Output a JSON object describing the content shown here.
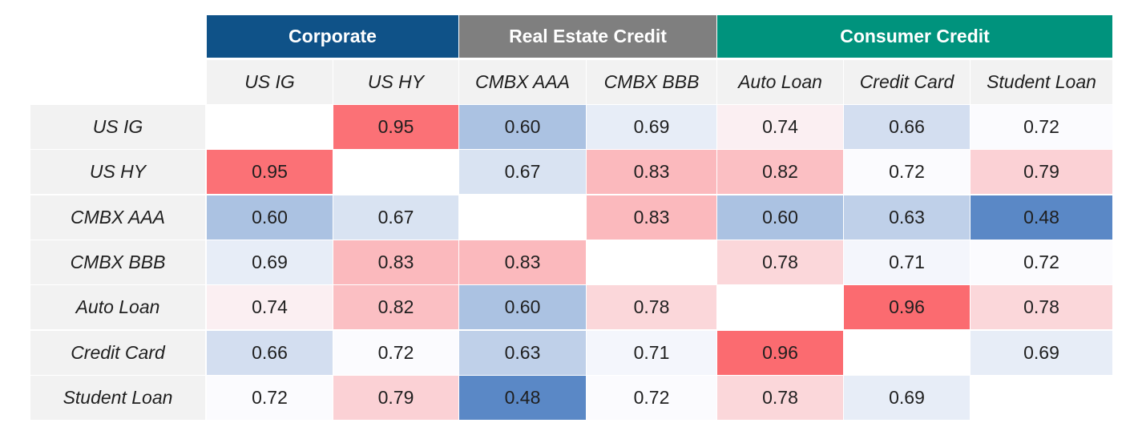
{
  "chart_data": {
    "type": "heatmap",
    "column_groups": [
      {
        "label": "Corporate",
        "span": 2,
        "color": "#0f5288"
      },
      {
        "label": "Real Estate Credit",
        "span": 2,
        "color": "#7f7f7f"
      },
      {
        "label": "Consumer Credit",
        "span": 3,
        "color": "#00937d"
      }
    ],
    "columns": [
      "US IG",
      "US HY",
      "CMBX AAA",
      "CMBX BBB",
      "Auto Loan",
      "Credit Card",
      "Student Loan"
    ],
    "rows": [
      "US IG",
      "US HY",
      "CMBX AAA",
      "CMBX BBB",
      "Auto Loan",
      "Credit Card",
      "Student Loan"
    ],
    "values": [
      [
        null,
        0.95,
        0.6,
        0.69,
        0.74,
        0.66,
        0.72
      ],
      [
        0.95,
        null,
        0.67,
        0.83,
        0.82,
        0.72,
        0.79
      ],
      [
        0.6,
        0.67,
        null,
        0.83,
        0.6,
        0.63,
        0.48
      ],
      [
        0.69,
        0.83,
        0.83,
        null,
        0.78,
        0.71,
        0.72
      ],
      [
        0.74,
        0.82,
        0.6,
        0.78,
        null,
        0.96,
        0.78
      ],
      [
        0.66,
        0.72,
        0.63,
        0.71,
        0.96,
        null,
        0.69
      ],
      [
        0.72,
        0.79,
        0.48,
        0.72,
        0.78,
        0.69,
        null
      ]
    ],
    "labels": [
      [
        null,
        "0.95",
        "0.60",
        "0.69",
        "0.74",
        "0.66",
        "0.72"
      ],
      [
        "0.95",
        null,
        "0.67",
        "0.83",
        "0.82",
        "0.72",
        "0.79"
      ],
      [
        "0.60",
        "0.67",
        null,
        "0.83",
        "0.60",
        "0.63",
        "0.48"
      ],
      [
        "0.69",
        "0.83",
        "0.83",
        null,
        "0.78",
        "0.71",
        "0.72"
      ],
      [
        "0.74",
        "0.82",
        "0.60",
        "0.78",
        null,
        "0.96",
        "0.78"
      ],
      [
        "0.66",
        "0.72",
        "0.63",
        "0.71",
        "0.96",
        null,
        "0.69"
      ],
      [
        "0.72",
        "0.79",
        "0.48",
        "0.72",
        "0.78",
        "0.69",
        null
      ]
    ],
    "color_scale": {
      "low": "#5a88c6",
      "mid": "#fbfbfe",
      "high": "#fb6b70",
      "low_value": 0.48,
      "mid_value": 0.72,
      "high_value": 0.96
    }
  }
}
